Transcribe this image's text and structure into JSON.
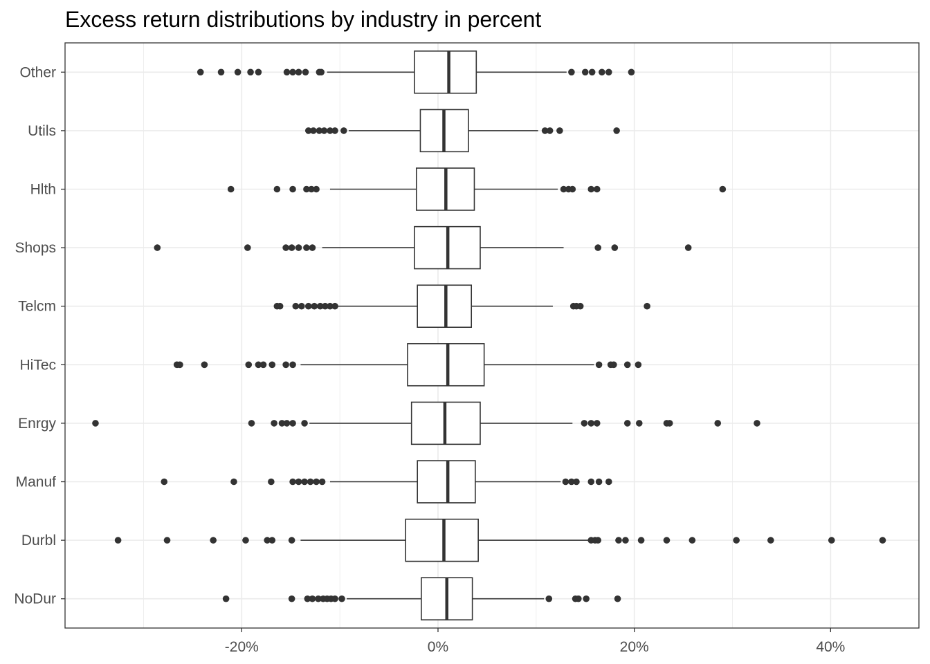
{
  "chart_data": {
    "type": "boxplot",
    "title": "Excess return distributions by industry in percent",
    "xlabel": "",
    "ylabel": "",
    "xlim": [
      -38,
      49
    ],
    "x_ticks": [
      -30,
      -20,
      -10,
      0,
      10,
      20,
      30,
      40
    ],
    "x_tick_labels": [
      "",
      "-20%",
      "",
      "0%",
      "",
      "20%",
      "",
      "40%"
    ],
    "grid": true,
    "colors": {
      "box_line": "#333333",
      "outlier": "#333333",
      "grid": "#ebebeb",
      "panel_border": "#333333"
    },
    "categories": [
      "NoDur",
      "Durbl",
      "Manuf",
      "Enrgy",
      "HiTec",
      "Telcm",
      "Shops",
      "Hlth",
      "Utils",
      "Other"
    ],
    "boxes": [
      {
        "name": "NoDur",
        "q1": -1.7,
        "median": 0.9,
        "q3": 3.5,
        "whisker_low": -9.3,
        "whisker_high": 10.8,
        "outliers": [
          -21.6,
          -14.9,
          -13.3,
          -12.8,
          -12.2,
          -11.7,
          -11.3,
          -10.9,
          -10.5,
          -9.8,
          11.3,
          14.0,
          14.3,
          15.1,
          18.3
        ]
      },
      {
        "name": "Durbl",
        "q1": -3.3,
        "median": 0.6,
        "q3": 4.1,
        "whisker_low": -14.0,
        "whisker_high": 15.3,
        "outliers": [
          -32.6,
          -27.6,
          -22.9,
          -19.6,
          -17.4,
          -16.9,
          -14.9,
          15.6,
          16.0,
          16.3,
          18.4,
          19.1,
          20.7,
          23.3,
          25.9,
          30.4,
          33.9,
          40.1,
          45.3
        ]
      },
      {
        "name": "Manuf",
        "q1": -2.1,
        "median": 1.0,
        "q3": 3.8,
        "whisker_low": -11.0,
        "whisker_high": 12.5,
        "outliers": [
          -27.9,
          -20.8,
          -17.0,
          -14.8,
          -14.2,
          -13.6,
          -13.0,
          -12.4,
          -11.8,
          13.0,
          13.6,
          14.1,
          15.6,
          16.4,
          17.4
        ]
      },
      {
        "name": "Enrgy",
        "q1": -2.7,
        "median": 0.7,
        "q3": 4.3,
        "whisker_low": -13.1,
        "whisker_high": 13.7,
        "outliers": [
          -34.9,
          -19.0,
          -16.7,
          -15.9,
          -15.4,
          -14.8,
          -13.6,
          14.9,
          15.6,
          16.2,
          19.3,
          20.5,
          23.3,
          23.6,
          28.5,
          32.5
        ]
      },
      {
        "name": "HiTec",
        "q1": -3.1,
        "median": 1.0,
        "q3": 4.7,
        "whisker_low": -14.0,
        "whisker_high": 15.9,
        "outliers": [
          -26.6,
          -26.3,
          -23.8,
          -19.3,
          -18.3,
          -17.8,
          -16.9,
          -15.5,
          -14.8,
          16.4,
          17.6,
          17.9,
          19.3,
          20.4
        ]
      },
      {
        "name": "Telcm",
        "q1": -2.1,
        "median": 0.8,
        "q3": 3.4,
        "whisker_low": -10.3,
        "whisker_high": 11.7,
        "outliers": [
          -16.4,
          -16.1,
          -14.5,
          -13.9,
          -13.2,
          -12.6,
          -12.0,
          -11.5,
          -11.0,
          -10.5,
          13.8,
          14.1,
          14.5,
          21.3
        ]
      },
      {
        "name": "Shops",
        "q1": -2.4,
        "median": 1.0,
        "q3": 4.3,
        "whisker_low": -11.8,
        "whisker_high": 12.8,
        "outliers": [
          -28.6,
          -19.4,
          -15.5,
          -14.9,
          -14.2,
          -13.4,
          -12.8,
          16.3,
          18.0,
          25.5
        ]
      },
      {
        "name": "Hlth",
        "q1": -2.2,
        "median": 0.8,
        "q3": 3.7,
        "whisker_low": -11.0,
        "whisker_high": 12.2,
        "outliers": [
          -21.1,
          -16.4,
          -14.8,
          -13.4,
          -12.9,
          -12.4,
          12.8,
          13.3,
          13.7,
          15.6,
          16.2,
          29.0
        ]
      },
      {
        "name": "Utils",
        "q1": -1.8,
        "median": 0.6,
        "q3": 3.1,
        "whisker_low": -9.1,
        "whisker_high": 10.2,
        "outliers": [
          -13.2,
          -12.7,
          -12.1,
          -11.6,
          -11.0,
          -10.5,
          -9.6,
          10.9,
          11.4,
          12.4,
          18.2
        ]
      },
      {
        "name": "Other",
        "q1": -2.4,
        "median": 1.1,
        "q3": 3.9,
        "whisker_low": -11.3,
        "whisker_high": 13.1,
        "outliers": [
          -24.2,
          -22.1,
          -20.4,
          -19.1,
          -18.3,
          -15.4,
          -14.8,
          -14.2,
          -13.5,
          -12.1,
          -11.9,
          13.6,
          15.0,
          15.7,
          16.7,
          17.4,
          19.7
        ]
      }
    ]
  }
}
